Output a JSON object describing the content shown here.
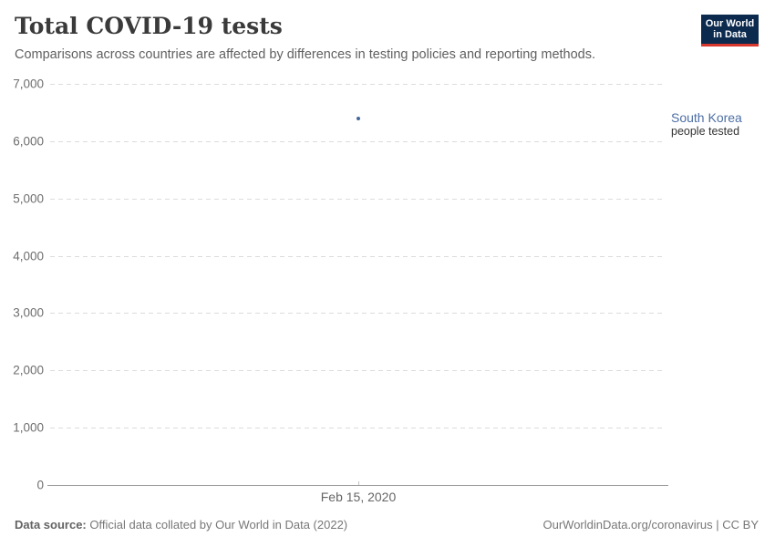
{
  "header": {
    "title": "Total COVID-19 tests",
    "subtitle": "Comparisons across countries are affected by differences in testing policies and reporting methods."
  },
  "logo": {
    "line1": "Our World",
    "line2": "in Data",
    "bg_color": "#0b2a4e",
    "accent_color": "#d7372c"
  },
  "chart_data": {
    "type": "scatter",
    "title": "Total COVID-19 tests",
    "xlabel": "",
    "ylabel": "",
    "ylim": [
      0,
      7000
    ],
    "grid": "horizontal-dashed",
    "yticks": [
      {
        "value": 0,
        "label": "0"
      },
      {
        "value": 1000,
        "label": "1,000"
      },
      {
        "value": 2000,
        "label": "2,000"
      },
      {
        "value": 3000,
        "label": "3,000"
      },
      {
        "value": 4000,
        "label": "4,000"
      },
      {
        "value": 5000,
        "label": "5,000"
      },
      {
        "value": 6000,
        "label": "6,000"
      },
      {
        "value": 7000,
        "label": "7,000"
      }
    ],
    "xtick_labels": [
      "Feb 15, 2020"
    ],
    "series": [
      {
        "name": "South Korea",
        "unit_label": "people tested",
        "color": "#44669b",
        "label_color": "#4d6fa5",
        "x": [
          "Feb 15, 2020"
        ],
        "values": [
          6400
        ]
      }
    ],
    "legend_position": "right-of-point"
  },
  "footer": {
    "source_label": "Data source:",
    "source_text": " Official data collated by Our World in Data (2022)",
    "link_text": "OurWorldinData.org/coronavirus | CC BY"
  }
}
